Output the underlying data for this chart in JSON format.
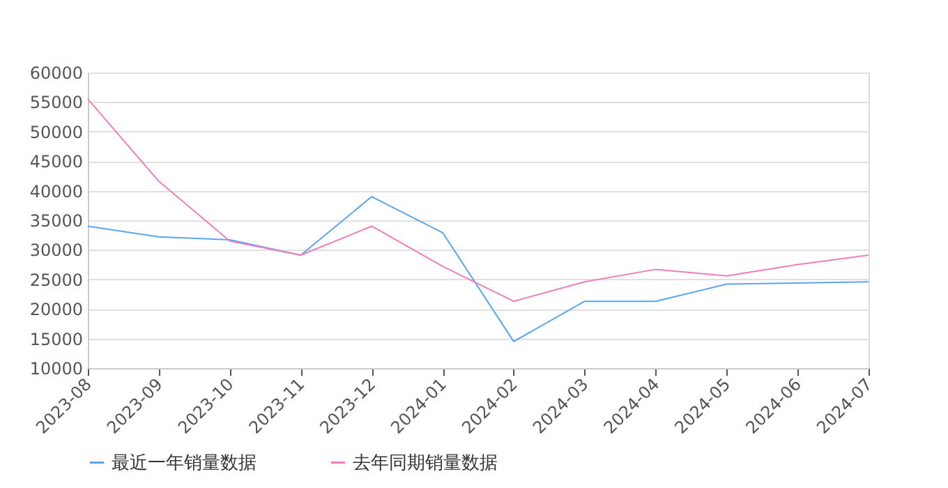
{
  "chart_data": {
    "type": "line",
    "categories": [
      "2023-08",
      "2023-09",
      "2023-10",
      "2023-11",
      "2023-12",
      "2024-01",
      "2024-02",
      "2024-03",
      "2024-04",
      "2024-05",
      "2024-06",
      "2024-07"
    ],
    "series": [
      {
        "name": "最近一年销量数据",
        "color": "#5aa5f0",
        "values": [
          34000,
          32200,
          31700,
          29100,
          39000,
          32900,
          14500,
          21300,
          21300,
          24200,
          24400,
          24600
        ]
      },
      {
        "name": "去年同期销量数据",
        "color": "#f27db8",
        "values": [
          55500,
          41600,
          31500,
          29100,
          34000,
          27200,
          21300,
          24600,
          26700,
          25600,
          27500,
          29100
        ]
      }
    ],
    "ylim": [
      10000,
      60000
    ],
    "yticks": [
      10000,
      15000,
      20000,
      25000,
      30000,
      35000,
      40000,
      45000,
      50000,
      55000,
      60000
    ],
    "grid": "y",
    "legend": "bottom",
    "marker": "none",
    "line_style": "solid"
  }
}
